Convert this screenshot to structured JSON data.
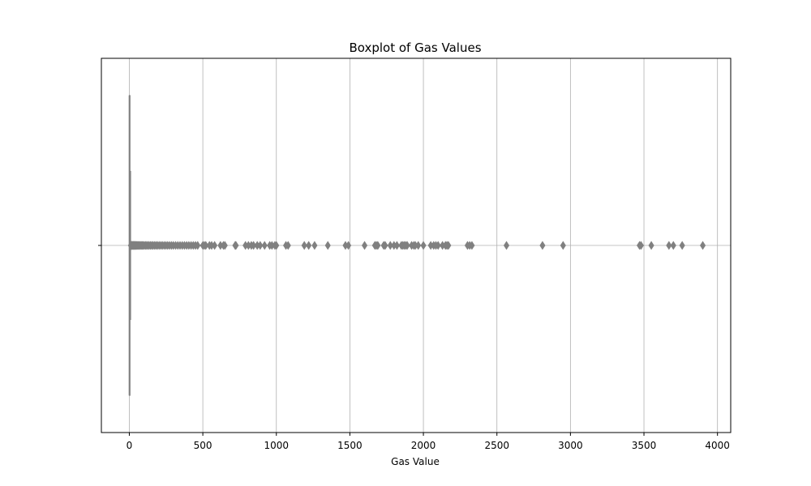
{
  "chart_data": {
    "type": "box",
    "title": "Boxplot of Gas Values",
    "xlabel": "Gas Value",
    "ylabel": "",
    "orientation": "horizontal",
    "xlim": [
      -190,
      4090
    ],
    "x_ticks": [
      0,
      500,
      1000,
      1500,
      2000,
      2500,
      3000,
      3500,
      4000
    ],
    "x_tick_labels": [
      "0",
      "500",
      "1000",
      "1500",
      "2000",
      "2500",
      "3000",
      "3500",
      "4000"
    ],
    "grid": true,
    "box_color": "#808080",
    "box": {
      "min": 0,
      "q1": 0,
      "median": 0,
      "q3": 3,
      "max": 8
    },
    "outliers": [
      10,
      12,
      14,
      16,
      18,
      20,
      23,
      26,
      29,
      32,
      35,
      38,
      42,
      46,
      50,
      55,
      60,
      65,
      70,
      76,
      82,
      88,
      95,
      102,
      110,
      118,
      126,
      135,
      144,
      153,
      162,
      172,
      182,
      192,
      203,
      214,
      225,
      237,
      249,
      261,
      274,
      287,
      300,
      315,
      330,
      345,
      360,
      375,
      390,
      405,
      420,
      435,
      450,
      465,
      500,
      510,
      520,
      545,
      560,
      580,
      620,
      640,
      650,
      720,
      725,
      790,
      810,
      830,
      845,
      870,
      890,
      920,
      955,
      970,
      990,
      1000,
      1065,
      1080,
      1190,
      1220,
      1260,
      1350,
      1470,
      1490,
      1600,
      1670,
      1680,
      1690,
      1730,
      1740,
      1775,
      1800,
      1820,
      1850,
      1860,
      1870,
      1880,
      1890,
      1920,
      1935,
      1945,
      1965,
      2000,
      2050,
      2070,
      2085,
      2100,
      2130,
      2150,
      2160,
      2170,
      2300,
      2315,
      2330,
      2565,
      2810,
      2950,
      3470,
      3480,
      3550,
      3670,
      3700,
      3760,
      3900
    ]
  }
}
